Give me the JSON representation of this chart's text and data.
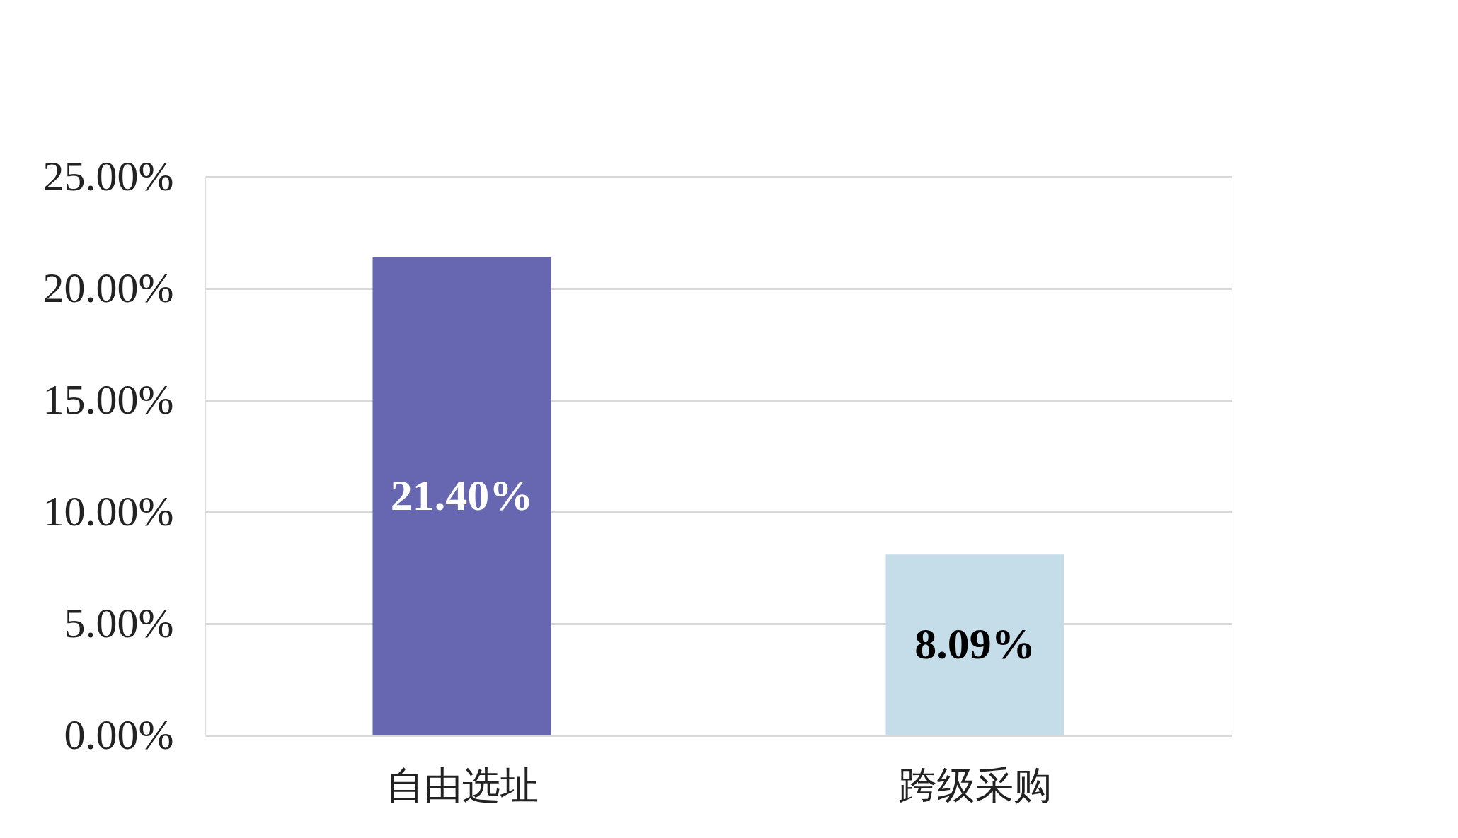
{
  "chart_data": {
    "type": "bar",
    "categories": [
      "自由选址",
      "跨级采购"
    ],
    "values": [
      21.4,
      8.09
    ],
    "colors": [
      "#6667b0",
      "#c5dde9"
    ],
    "value_labels": [
      "21.40%",
      "8.09%"
    ],
    "ylim": [
      0,
      25
    ],
    "yticks": [
      {
        "value": 0,
        "label": "0.00%"
      },
      {
        "value": 5,
        "label": "5.00%"
      },
      {
        "value": 10,
        "label": "10.00%"
      },
      {
        "value": 15,
        "label": "15.00%"
      },
      {
        "value": 20,
        "label": "20.00%"
      },
      {
        "value": 25,
        "label": "25.00%"
      }
    ],
    "grid": "y"
  }
}
